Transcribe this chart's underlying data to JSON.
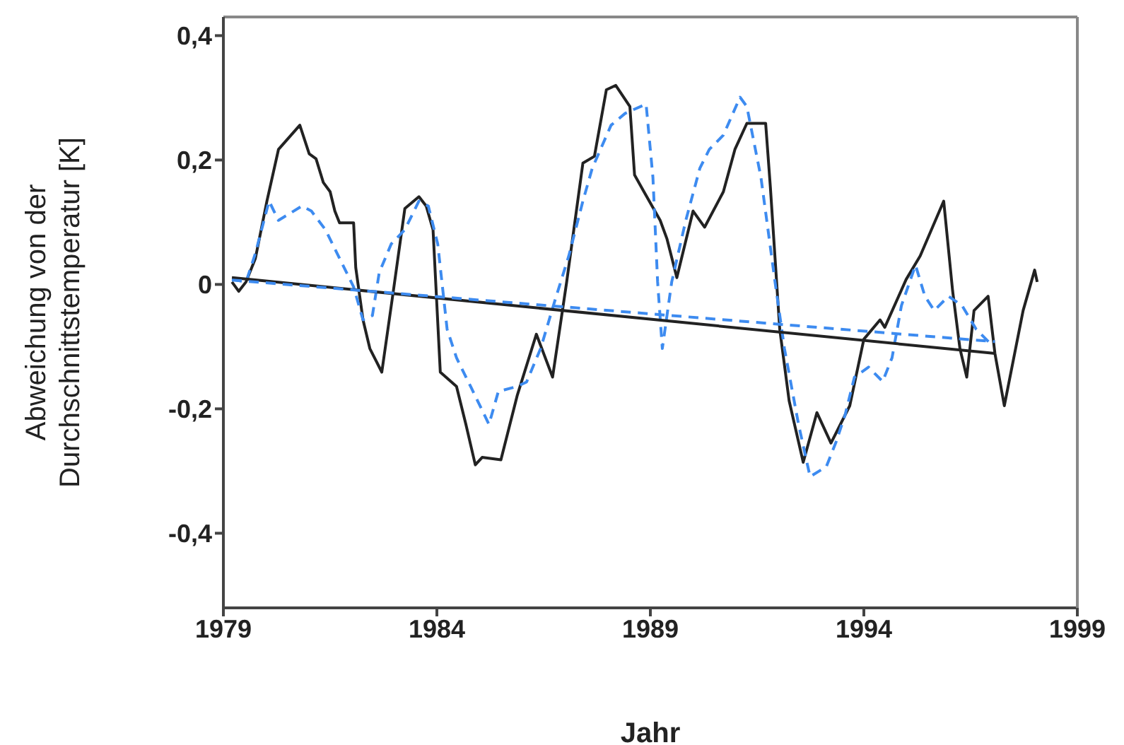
{
  "chart_data": {
    "type": "line",
    "xlabel": "Jahr",
    "ylabel": "Abweichung von der\nDurchschnittstemperatur [K]",
    "xlim": [
      1979,
      1999
    ],
    "xticks": [
      1979,
      1984,
      1989,
      1994,
      1999
    ],
    "ylim": [
      -0.52,
      0.43
    ],
    "yticks": [
      {
        "value": 0.4,
        "label": "0,4"
      },
      {
        "value": 0.2,
        "label": "0,2"
      },
      {
        "value": 0,
        "label": "0"
      },
      {
        "value": -0.2,
        "label": "-0,2"
      },
      {
        "value": -0.4,
        "label": "-0,4"
      }
    ],
    "marker": "none",
    "series": [
      {
        "color": "#222222",
        "line_style": "solid",
        "x": [
          1979.2,
          1979.36,
          1979.53,
          1979.75,
          1980.02,
          1980.29,
          1980.79,
          1981.01,
          1981.17,
          1981.34,
          1981.5,
          1981.61,
          1981.72,
          1982.05,
          1982.1,
          1982.27,
          1982.43,
          1982.71,
          1982.98,
          1983.25,
          1983.58,
          1983.75,
          1983.91,
          1984.08,
          1984.46,
          1984.68,
          1984.9,
          1985.06,
          1985.5,
          1985.88,
          1986.33,
          1986.71,
          1987.04,
          1987.42,
          1987.69,
          1987.97,
          1988.19,
          1988.52,
          1988.63,
          1988.85,
          1989.23,
          1989.39,
          1989.62,
          1990.0,
          1990.27,
          1990.71,
          1990.98,
          1991.26,
          1991.7,
          1991.81,
          1992.03,
          1992.25,
          1992.58,
          1992.9,
          1993.23,
          1993.67,
          1994.0,
          1994.38,
          1994.49,
          1994.99,
          1995.32,
          1995.87,
          1996.08,
          1996.25,
          1996.41,
          1996.58,
          1996.91,
          1997.07,
          1997.29,
          1997.73,
          1998.0,
          1998.06
        ],
        "values": [
          0.004,
          -0.011,
          0.004,
          0.042,
          0.134,
          0.217,
          0.256,
          0.21,
          0.202,
          0.164,
          0.149,
          0.118,
          0.099,
          0.099,
          0.027,
          -0.057,
          -0.103,
          -0.141,
          -0.011,
          0.122,
          0.141,
          0.126,
          0.088,
          -0.141,
          -0.164,
          -0.225,
          -0.29,
          -0.278,
          -0.282,
          -0.179,
          -0.08,
          -0.149,
          0.004,
          0.195,
          0.206,
          0.313,
          0.32,
          0.286,
          0.176,
          0.149,
          0.103,
          0.073,
          0.011,
          0.118,
          0.092,
          0.149,
          0.217,
          0.259,
          0.259,
          0.157,
          -0.072,
          -0.187,
          -0.286,
          -0.206,
          -0.255,
          -0.195,
          -0.088,
          -0.057,
          -0.069,
          0.008,
          0.046,
          0.134,
          -0.011,
          -0.103,
          -0.149,
          -0.042,
          -0.019,
          -0.111,
          -0.195,
          -0.042,
          0.023,
          0.004
        ]
      },
      {
        "color": "#3d8bf0",
        "line_style": "dashed",
        "x": [
          1979.2,
          1979.53,
          1979.75,
          1980.07,
          1980.29,
          1980.84,
          1981.06,
          1981.39,
          1981.72,
          1982.05,
          1982.27,
          1982.49,
          1982.65,
          1982.93,
          1983.25,
          1983.58,
          1983.8,
          1984.02,
          1984.24,
          1984.46,
          1984.79,
          1985.22,
          1985.44,
          1985.88,
          1986.1,
          1986.43,
          1986.76,
          1987.09,
          1987.42,
          1987.64,
          1988.08,
          1988.41,
          1988.9,
          1989.06,
          1989.17,
          1989.28,
          1989.5,
          1989.83,
          1990.16,
          1990.38,
          1990.71,
          1991.1,
          1991.26,
          1991.59,
          1991.92,
          1992.14,
          1992.47,
          1992.74,
          1993.12,
          1993.34,
          1993.56,
          1993.78,
          1994.11,
          1994.44,
          1994.66,
          1994.88,
          1995.21,
          1995.43,
          1995.65,
          1995.98,
          1996.3,
          1996.63,
          1997.02
        ],
        "values": [
          0.008,
          0.004,
          0.05,
          0.134,
          0.103,
          0.126,
          0.118,
          0.088,
          0.042,
          -0.004,
          -0.057,
          -0.05,
          0.019,
          0.065,
          0.088,
          0.134,
          0.126,
          0.065,
          -0.072,
          -0.118,
          -0.164,
          -0.225,
          -0.172,
          -0.164,
          -0.157,
          -0.103,
          -0.027,
          0.046,
          0.134,
          0.187,
          0.256,
          0.275,
          0.29,
          0.172,
          0.004,
          -0.103,
          0.004,
          0.103,
          0.187,
          0.217,
          0.24,
          0.301,
          0.286,
          0.172,
          0.004,
          -0.103,
          -0.225,
          -0.309,
          -0.293,
          -0.255,
          -0.21,
          -0.149,
          -0.133,
          -0.156,
          -0.118,
          -0.034,
          0.031,
          -0.019,
          -0.042,
          -0.019,
          -0.034,
          -0.072,
          -0.099
        ]
      },
      {
        "color": "#222222",
        "line_style": "solid",
        "x": [
          1979.2,
          1997.07
        ],
        "values": [
          0.011,
          -0.111
        ]
      },
      {
        "color": "#3d8bf0",
        "line_style": "dashed",
        "x": [
          1979.2,
          1997.07
        ],
        "values": [
          0.007,
          -0.092
        ]
      }
    ]
  }
}
